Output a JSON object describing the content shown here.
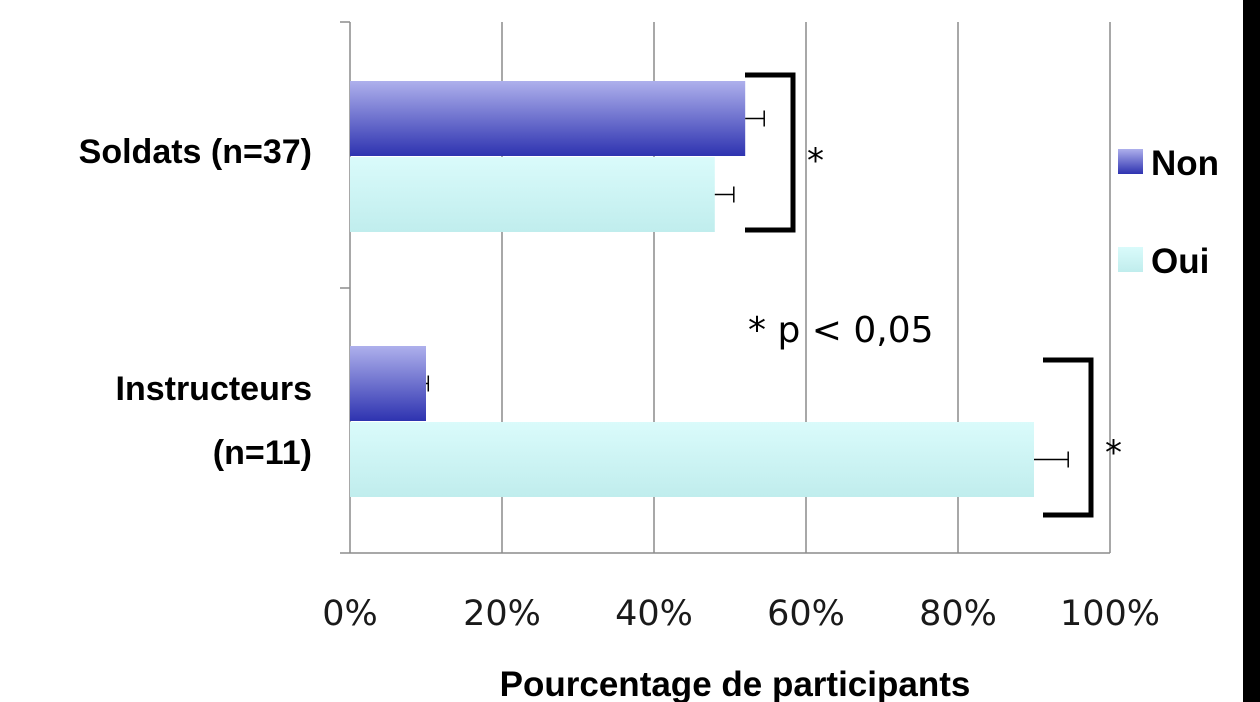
{
  "chart_data": {
    "type": "bar",
    "orientation": "horizontal",
    "categories": [
      "Soldats (n=37)",
      "Instructeurs (n=11)"
    ],
    "category_lines": [
      [
        "Soldats (n=37)"
      ],
      [
        "Instructeurs",
        "(n=11)"
      ]
    ],
    "series": [
      {
        "name": "Non",
        "values": [
          52,
          10
        ],
        "errors": [
          2.5,
          0.3
        ],
        "color": "#3a3fb8",
        "color_light": "#aeb0ec"
      },
      {
        "name": "Oui",
        "values": [
          48,
          90
        ],
        "errors": [
          2.5,
          4.5
        ],
        "color": "#c6f3f3",
        "color_light": "#dafbfb"
      }
    ],
    "xlim": [
      0,
      100
    ],
    "xticks": [
      0,
      20,
      40,
      60,
      80,
      100
    ],
    "tick_labels": [
      "0%",
      "20%",
      "40%",
      "60%",
      "80%",
      "100%"
    ],
    "xlabel": "Pourcentage de participants",
    "ylabel": "",
    "grid": "vertical",
    "legend_position": "right",
    "significance": [
      {
        "category": "Soldats (n=37)",
        "marker": "*"
      },
      {
        "category": "Instructeurs (n=11)",
        "marker": "*"
      }
    ],
    "annotation": "* p < 0,05"
  }
}
